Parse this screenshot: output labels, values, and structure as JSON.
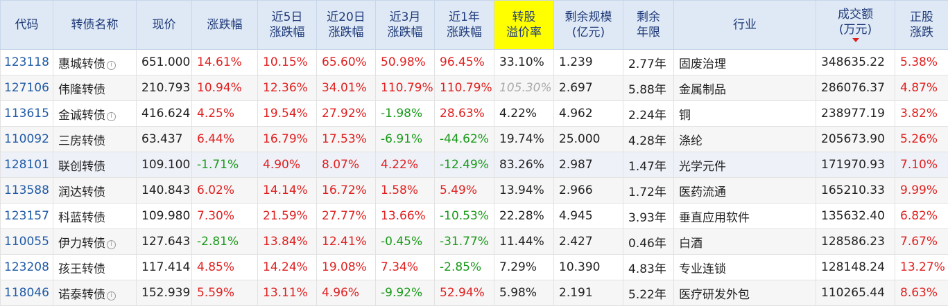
{
  "header": {
    "code": "代码",
    "name": "转债名称",
    "price": "现价",
    "change": "涨跌幅",
    "d5_l1": "近5日",
    "d5_l2": "涨跌幅",
    "d20_l1": "近20日",
    "d20_l2": "涨跌幅",
    "m3_l1": "近3月",
    "m3_l2": "涨跌幅",
    "y1_l1": "近1年",
    "y1_l2": "涨跌幅",
    "premium_l1": "转股",
    "premium_l2": "溢价率",
    "scale_l1": "剩余规模",
    "scale_l2": "(亿元)",
    "years_l1": "剩余",
    "years_l2": "年限",
    "industry": "行业",
    "volume_l1": "成交额",
    "volume_l2": "(万元)",
    "stock_l1": "正股",
    "stock_l2": "涨跌"
  },
  "colors": {
    "up": "#e02020",
    "down": "#1a9a1a",
    "header_bg": "#dfe9f6",
    "highlight": "#ffff00",
    "code": "#1f5aa6"
  },
  "rows": [
    {
      "code": "123118",
      "name": "惠城转债",
      "info": true,
      "price": "651.000",
      "change": "14.61%",
      "d5": "10.15%",
      "d20": "65.60%",
      "m3": "50.98%",
      "y1": "96.45%",
      "premium": "33.10%",
      "scale": "1.239",
      "years": "2.77年",
      "industry": "固废治理",
      "volume": "348635.22",
      "stock": "5.38%"
    },
    {
      "code": "127106",
      "name": "伟隆转债",
      "info": false,
      "price": "210.793",
      "change": "10.94%",
      "d5": "12.36%",
      "d20": "34.01%",
      "m3": "110.79%",
      "y1": "110.79%",
      "premium": "105.30%",
      "premium_muted": true,
      "scale": "2.697",
      "years": "5.88年",
      "industry": "金属制品",
      "volume": "286076.37",
      "stock": "4.87%"
    },
    {
      "code": "113615",
      "name": "金诚转债",
      "info": true,
      "price": "416.624",
      "change": "4.25%",
      "d5": "19.54%",
      "d20": "27.92%",
      "m3": "-1.98%",
      "y1": "28.63%",
      "premium": "4.22%",
      "scale": "4.962",
      "years": "2.24年",
      "industry": "铜",
      "volume": "238977.19",
      "stock": "3.82%"
    },
    {
      "code": "110092",
      "name": "三房转债",
      "info": false,
      "price": "63.437",
      "change": "6.44%",
      "d5": "16.79%",
      "d20": "17.53%",
      "m3": "-6.91%",
      "y1": "-44.62%",
      "premium": "19.74%",
      "scale": "25.000",
      "years": "4.28年",
      "industry": "涤纶",
      "volume": "205673.90",
      "stock": "5.26%"
    },
    {
      "code": "128101",
      "name": "联创转债",
      "info": false,
      "price": "109.100",
      "change": "-1.71%",
      "d5": "4.90%",
      "d20": "8.07%",
      "m3": "4.22%",
      "y1": "-12.49%",
      "premium": "83.26%",
      "scale": "2.987",
      "years": "1.47年",
      "industry": "光学元件",
      "volume": "171970.93",
      "stock": "7.10%",
      "selected": true
    },
    {
      "code": "113588",
      "name": "润达转债",
      "info": false,
      "price": "140.843",
      "change": "6.02%",
      "d5": "14.14%",
      "d20": "16.72%",
      "m3": "1.58%",
      "y1": "5.49%",
      "premium": "13.94%",
      "scale": "2.966",
      "years": "1.72年",
      "industry": "医药流通",
      "volume": "165210.33",
      "stock": "9.99%"
    },
    {
      "code": "123157",
      "name": "科蓝转债",
      "info": false,
      "price": "109.980",
      "change": "7.30%",
      "d5": "21.59%",
      "d20": "27.77%",
      "m3": "13.66%",
      "y1": "-10.53%",
      "premium": "22.28%",
      "scale": "4.945",
      "years": "3.93年",
      "industry": "垂直应用软件",
      "volume": "135632.40",
      "stock": "6.82%"
    },
    {
      "code": "110055",
      "name": "伊力转债",
      "info": true,
      "price": "127.643",
      "change": "-2.81%",
      "d5": "13.84%",
      "d20": "12.41%",
      "m3": "-0.45%",
      "y1": "-31.77%",
      "premium": "11.44%",
      "scale": "2.427",
      "years": "0.46年",
      "industry": "白酒",
      "volume": "128586.23",
      "stock": "7.67%"
    },
    {
      "code": "123208",
      "name": "孩王转债",
      "info": false,
      "price": "117.414",
      "change": "4.85%",
      "d5": "14.24%",
      "d20": "19.08%",
      "m3": "7.34%",
      "y1": "-2.85%",
      "premium": "7.29%",
      "scale": "10.390",
      "years": "4.83年",
      "industry": "专业连锁",
      "volume": "128148.24",
      "stock": "13.27%"
    },
    {
      "code": "118046",
      "name": "诺泰转债",
      "info": true,
      "price": "152.939",
      "change": "5.59%",
      "d5": "13.11%",
      "d20": "4.96%",
      "m3": "-9.92%",
      "y1": "52.94%",
      "premium": "5.98%",
      "scale": "2.191",
      "years": "5.22年",
      "industry": "医疗研发外包",
      "volume": "110265.44",
      "stock": "8.63%"
    }
  ]
}
